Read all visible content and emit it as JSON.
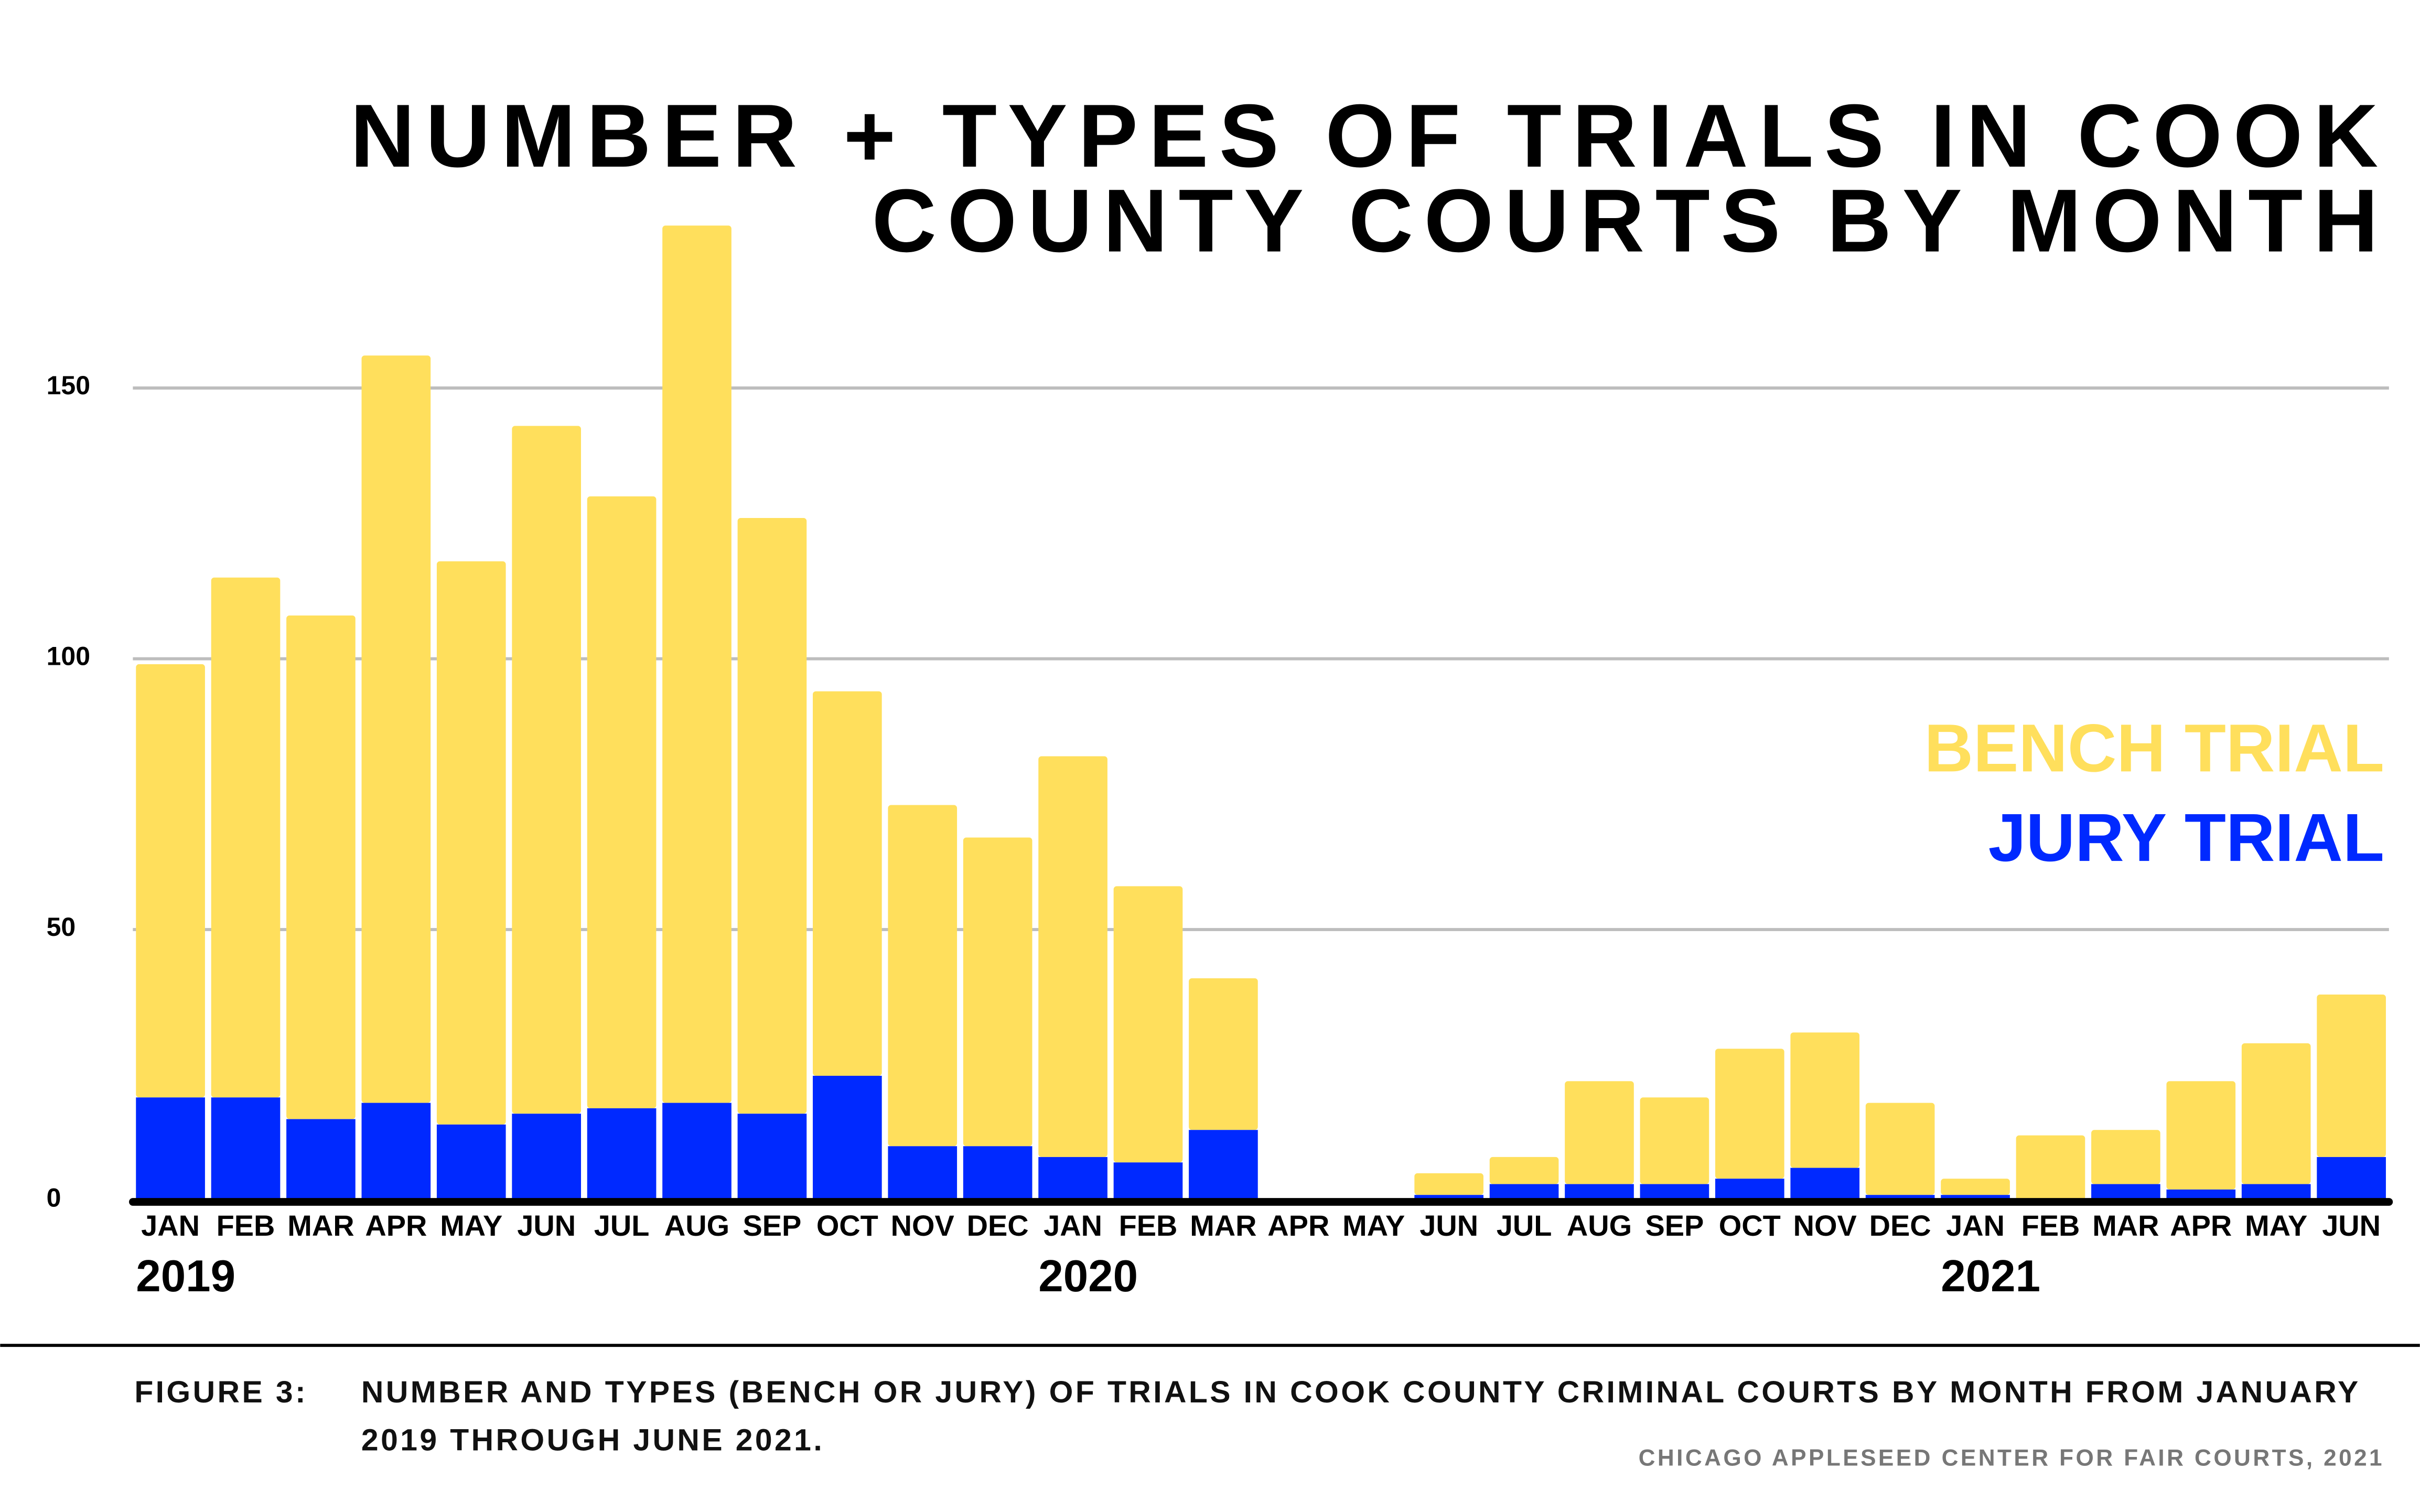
{
  "chart_data": {
    "type": "bar",
    "stacked": true,
    "title_lines": [
      "NUMBER + TYPES OF TRIALS IN COOK",
      "COUNTY COURTS BY MONTH"
    ],
    "categories": [
      "JAN",
      "FEB",
      "MAR",
      "APR",
      "MAY",
      "JUN",
      "JUL",
      "AUG",
      "SEP",
      "OCT",
      "NOV",
      "DEC",
      "JAN",
      "FEB",
      "MAR",
      "APR",
      "MAY",
      "JUN",
      "JUL",
      "AUG",
      "SEP",
      "OCT",
      "NOV",
      "DEC",
      "JAN",
      "FEB",
      "MAR",
      "APR",
      "MAY",
      "JUN"
    ],
    "year_labels": [
      {
        "label": "2019",
        "index": 0
      },
      {
        "label": "2020",
        "index": 12
      },
      {
        "label": "2021",
        "index": 24
      }
    ],
    "series": [
      {
        "name": "JURY TRIAL",
        "color": "#0029FF",
        "values": [
          19,
          19,
          15,
          18,
          14,
          16,
          17,
          18,
          16,
          23,
          10,
          10,
          8,
          7,
          13,
          0,
          0,
          1,
          3,
          3,
          3,
          4,
          6,
          1,
          1,
          0,
          3,
          2,
          3,
          8
        ]
      },
      {
        "name": "BENCH TRIAL",
        "color": "#FFDF5C",
        "values": [
          80,
          96,
          93,
          138,
          104,
          127,
          113,
          162,
          110,
          71,
          63,
          57,
          74,
          51,
          28,
          0,
          0,
          4,
          5,
          19,
          16,
          24,
          25,
          17,
          3,
          12,
          10,
          20,
          26,
          30
        ]
      }
    ],
    "totals": [
      99,
      115,
      108,
      156,
      118,
      143,
      130,
      180,
      126,
      94,
      73,
      67,
      82,
      58,
      41,
      0,
      0,
      5,
      8,
      22,
      19,
      28,
      31,
      18,
      4,
      12,
      13,
      22,
      29,
      38
    ],
    "yticks": [
      0,
      50,
      100,
      150
    ],
    "ylim": [
      0,
      185
    ],
    "grid": true,
    "legend_position": "right",
    "xlabel": "",
    "ylabel": ""
  },
  "caption": {
    "label": "FIGURE 3:",
    "line1": "NUMBER AND TYPES (BENCH OR JURY) OF TRIALS IN COOK COUNTY CRIMINAL COURTS BY MONTH FROM JANUARY",
    "line2": "2019 THROUGH JUNE 2021."
  },
  "source": "CHICAGO APPLESEED CENTER FOR FAIR COURTS, 2021"
}
